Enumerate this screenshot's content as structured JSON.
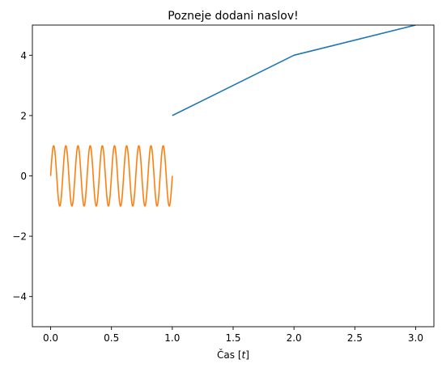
{
  "chart_data": {
    "type": "line",
    "title": "Pozneje dodani naslov!",
    "xlabel": "Čas [t]",
    "xlabel_parts": {
      "text": "Čas [",
      "var": "t",
      "close": "]"
    },
    "ylabel": "",
    "xlim": [
      -0.15,
      3.15
    ],
    "ylim": [
      -5,
      5
    ],
    "xticks": [
      0.0,
      0.5,
      1.0,
      1.5,
      2.0,
      2.5,
      3.0
    ],
    "xtick_labels": [
      "0.0",
      "0.5",
      "1.0",
      "1.5",
      "2.0",
      "2.5",
      "3.0"
    ],
    "yticks": [
      -4,
      -2,
      0,
      2,
      4
    ],
    "ytick_labels": [
      "−4",
      "−2",
      "0",
      "2",
      "4"
    ],
    "grid": false,
    "series": [
      {
        "color": "#1f77b4",
        "x": [
          1,
          2,
          3
        ],
        "y": [
          2,
          4,
          5
        ]
      },
      {
        "color": "#ff7f0e",
        "function": "sin",
        "x_range": [
          0,
          1
        ],
        "cycles": 10,
        "amplitude": 1,
        "samples": 501
      }
    ]
  }
}
